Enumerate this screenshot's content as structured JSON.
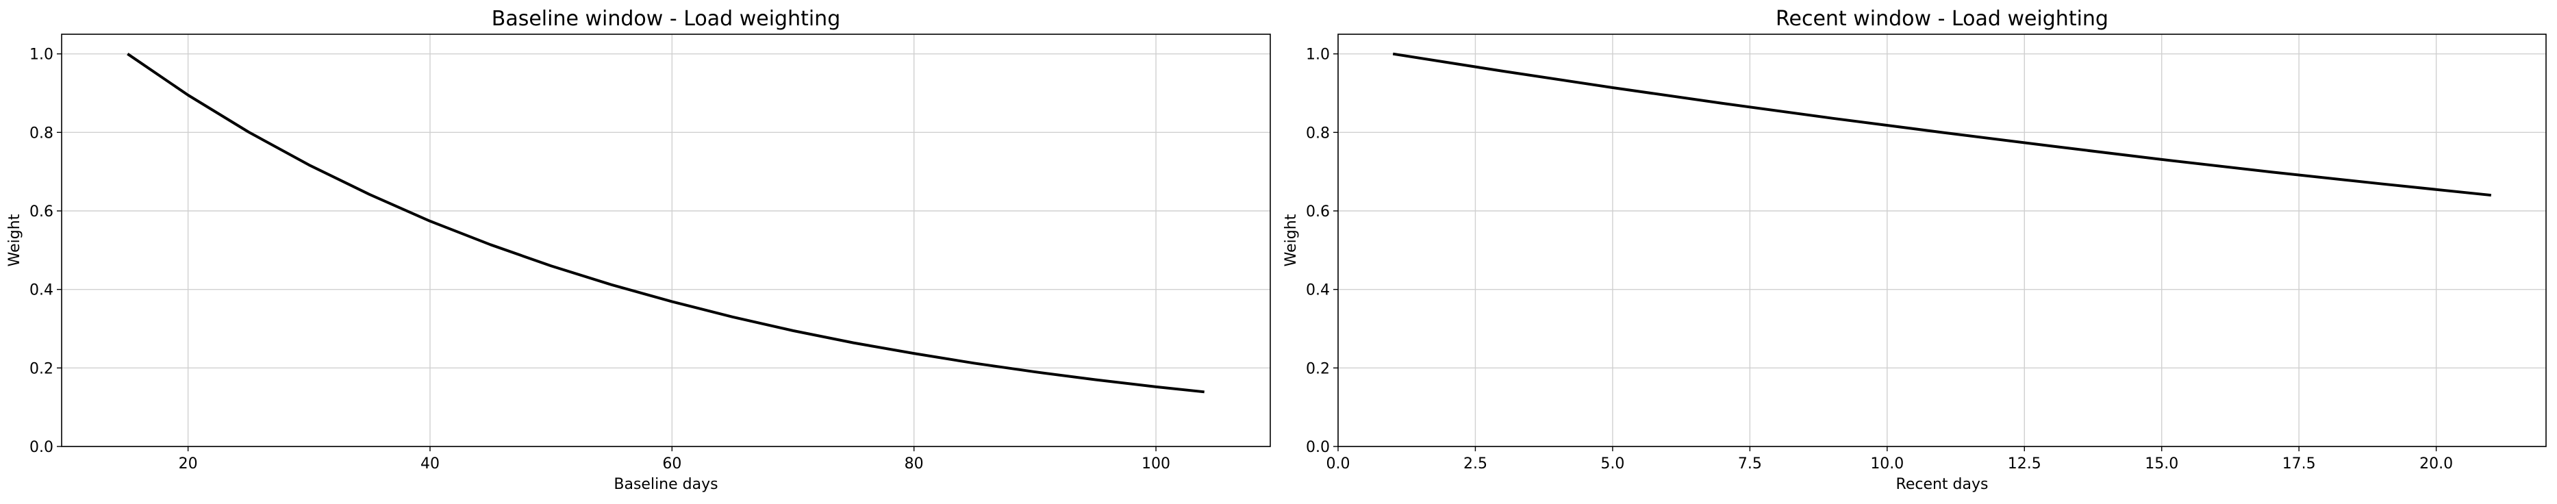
{
  "chart_data": [
    {
      "type": "line",
      "title": "Baseline window - Load weighting",
      "xlabel": "Baseline days",
      "ylabel": "Weight",
      "xlim": [
        9.55,
        109.45
      ],
      "ylim": [
        0.0,
        1.05
      ],
      "xticks": [
        20,
        40,
        60,
        80,
        100
      ],
      "xtick_labels": [
        "20",
        "40",
        "60",
        "80",
        "100"
      ],
      "yticks": [
        0.0,
        0.2,
        0.4,
        0.6,
        0.8,
        1.0
      ],
      "ytick_labels": [
        "0.0",
        "0.2",
        "0.4",
        "0.6",
        "0.8",
        "1.0"
      ],
      "grid": true,
      "color": "#000000",
      "series": [
        {
          "x": [
            15,
            20,
            25,
            30,
            35,
            40,
            45,
            50,
            55,
            60,
            65,
            70,
            75,
            80,
            85,
            90,
            95,
            100,
            104
          ],
          "values": [
            1.0,
            0.895,
            0.801,
            0.717,
            0.642,
            0.574,
            0.514,
            0.46,
            0.412,
            0.369,
            0.33,
            0.295,
            0.264,
            0.237,
            0.212,
            0.19,
            0.17,
            0.152,
            0.139
          ]
        }
      ]
    },
    {
      "type": "line",
      "title": "Recent window - Load weighting",
      "xlabel": "Recent days",
      "ylabel": "Weight",
      "xlim": [
        0.0,
        22.0
      ],
      "ylim": [
        0.0,
        1.05
      ],
      "xticks": [
        0.0,
        2.5,
        5.0,
        7.5,
        10.0,
        12.5,
        15.0,
        17.5,
        20.0
      ],
      "xtick_labels": [
        "0.0",
        "2.5",
        "5.0",
        "7.5",
        "10.0",
        "12.5",
        "15.0",
        "17.5",
        "20.0"
      ],
      "yticks": [
        0.0,
        0.2,
        0.4,
        0.6,
        0.8,
        1.0
      ],
      "ytick_labels": [
        "0.0",
        "0.2",
        "0.4",
        "0.6",
        "0.8",
        "1.0"
      ],
      "grid": true,
      "color": "#000000",
      "series": [
        {
          "x": [
            1,
            3,
            5,
            7,
            9,
            11,
            13,
            15,
            17,
            19,
            21
          ],
          "values": [
            1.0,
            0.956,
            0.914,
            0.874,
            0.836,
            0.8,
            0.765,
            0.731,
            0.699,
            0.669,
            0.64
          ]
        }
      ]
    }
  ]
}
